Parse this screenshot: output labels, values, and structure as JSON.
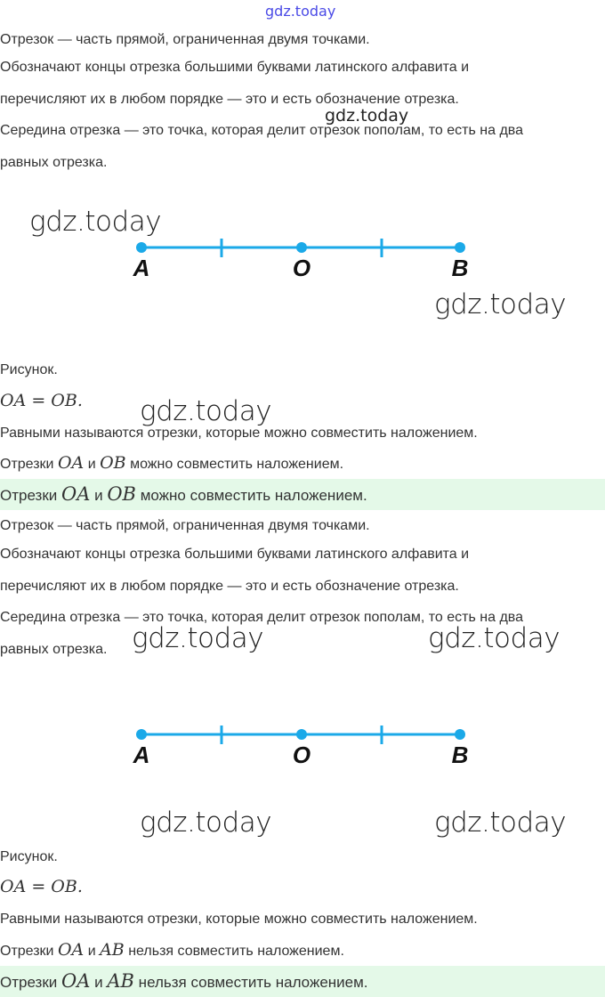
{
  "watermark": "gdz.today",
  "blocks": [
    {
      "p1": "Отрезок — часть прямой, ограниченная двумя точками.",
      "p2": "Обозначают концы отрезка большими буквами латинского алфавита и",
      "p3": "перечисляют их в любом порядке — это и есть обозначение отрезка.",
      "p4": "Середина отрезка — это точка, которая делит отрезок пополам, то есть на два",
      "p5": "равных отрезка.",
      "figure": {
        "points": [
          "A",
          "O",
          "B"
        ],
        "color": "#1ba9e8"
      },
      "caption": "Рисунок.",
      "equation": "OA = OB.",
      "def": "Равными называются отрезки, которые можно совместить наложением.",
      "s_pre": "Отрезки ",
      "s_m1": "OA",
      "s_and": " и ",
      "s_m2": "OB",
      "s_post": " можно совместить наложением."
    },
    {
      "p1": "Отрезок — часть прямой, ограниченная двумя точками.",
      "p2": "Обозначают концы отрезка большими буквами латинского алфавита и",
      "p3": "перечисляют их в любом порядке — это и есть обозначение отрезка.",
      "p4": "Середина отрезка — это точка, которая делит отрезок пополам, то есть на два",
      "p5": "равных отрезка.",
      "figure": {
        "points": [
          "A",
          "O",
          "B"
        ],
        "color": "#1ba9e8"
      },
      "caption": "Рисунок.",
      "equation": "OA = OB.",
      "def": "Равными называются отрезки, которые можно совместить наложением.",
      "s_pre": "Отрезки ",
      "s_m1": "OA",
      "s_and": " и ",
      "s_m2": "AB",
      "s_post": " нельзя совместить наложением."
    }
  ],
  "highlight_color": "#e4f9e8"
}
